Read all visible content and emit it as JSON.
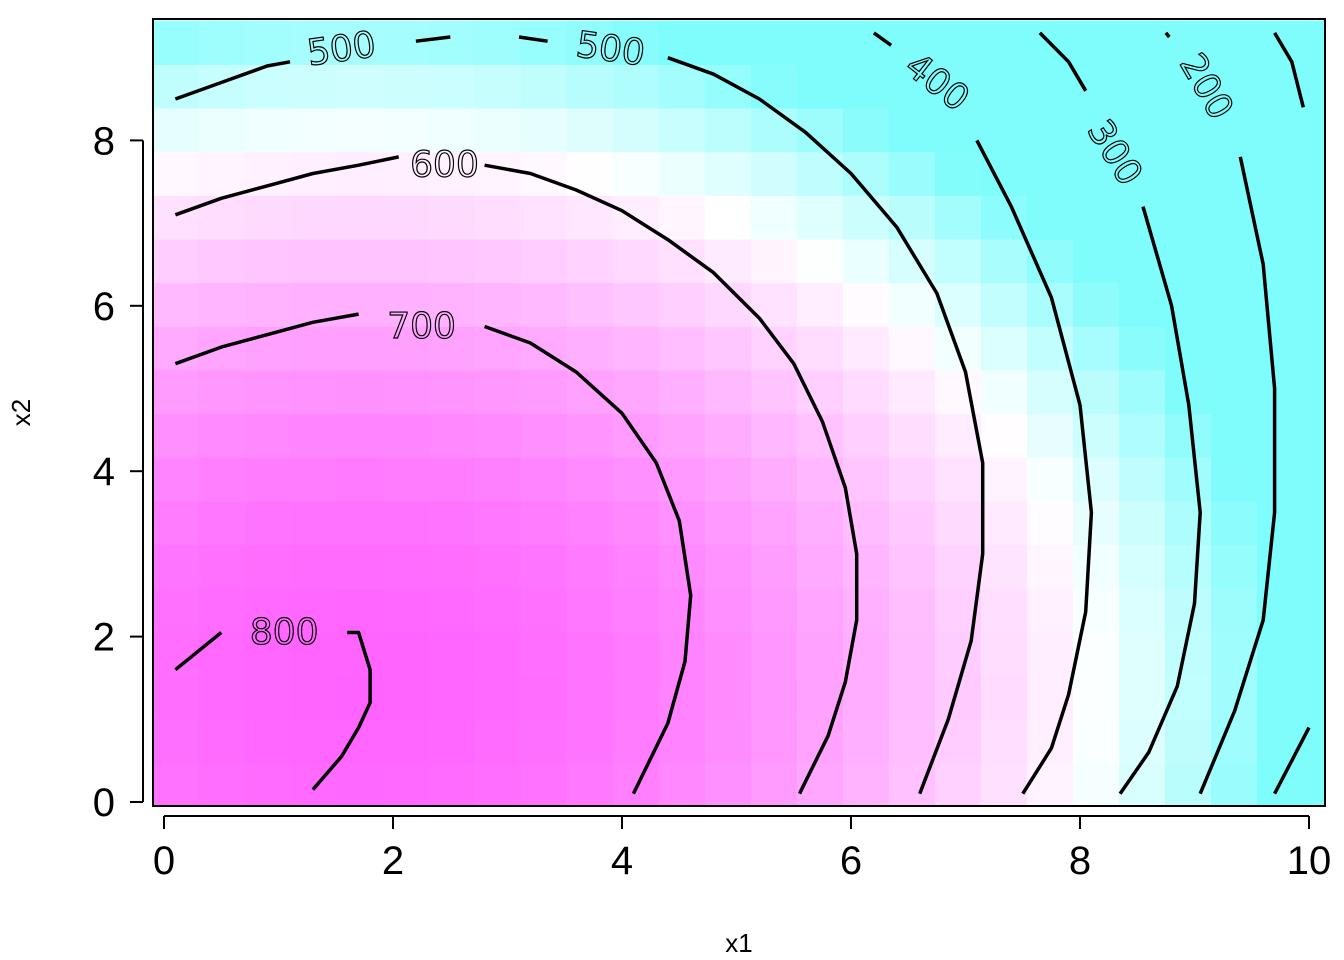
{
  "chart_data": {
    "type": "heatmap",
    "title": "",
    "xlabel": "x1",
    "ylabel": "x2",
    "xlim": [
      0,
      10
    ],
    "ylim": [
      0,
      9.4
    ],
    "x_ticks": [
      0,
      2,
      4,
      6,
      8,
      10
    ],
    "y_ticks": [
      0,
      2,
      4,
      6,
      8
    ],
    "x_tick_labels": [
      "0",
      "2",
      "4",
      "6",
      "8",
      "10"
    ],
    "y_tick_labels": [
      "0",
      "2",
      "4",
      "6",
      "8"
    ],
    "color_scale": {
      "low": "#7ffcfc",
      "mid": "#ffffff",
      "high": "#ff5cff"
    },
    "value_range": [
      150,
      850
    ],
    "contours": [
      {
        "level": 800,
        "label": "800",
        "segments": [
          [
            [
              0.1,
              1.6
            ],
            [
              0.5,
              2.05
            ]
          ],
          [
            [
              1.6,
              2.05
            ],
            [
              1.7,
              2.05
            ],
            [
              1.8,
              1.6
            ],
            [
              1.8,
              1.2
            ],
            [
              1.7,
              0.9
            ],
            [
              1.55,
              0.55
            ],
            [
              1.3,
              0.15
            ]
          ]
        ]
      },
      {
        "level": 700,
        "label": "700",
        "segments": [
          [
            [
              0.1,
              5.3
            ],
            [
              0.5,
              5.5
            ],
            [
              0.9,
              5.65
            ],
            [
              1.3,
              5.8
            ],
            [
              1.7,
              5.9
            ]
          ],
          [
            [
              2.8,
              5.75
            ],
            [
              3.2,
              5.55
            ],
            [
              3.6,
              5.2
            ],
            [
              4.0,
              4.7
            ],
            [
              4.3,
              4.1
            ],
            [
              4.5,
              3.4
            ],
            [
              4.6,
              2.5
            ],
            [
              4.55,
              1.7
            ],
            [
              4.4,
              0.95
            ],
            [
              4.1,
              0.1
            ]
          ]
        ]
      },
      {
        "level": 600,
        "label": "600",
        "segments": [
          [
            [
              0.1,
              7.1
            ],
            [
              0.5,
              7.3
            ],
            [
              0.9,
              7.45
            ],
            [
              1.3,
              7.6
            ],
            [
              1.7,
              7.7
            ],
            [
              2.05,
              7.8
            ]
          ],
          [
            [
              2.8,
              7.7
            ],
            [
              3.2,
              7.6
            ],
            [
              3.6,
              7.4
            ],
            [
              4.0,
              7.15
            ],
            [
              4.4,
              6.8
            ],
            [
              4.8,
              6.4
            ],
            [
              5.2,
              5.85
            ],
            [
              5.5,
              5.3
            ],
            [
              5.75,
              4.6
            ],
            [
              5.95,
              3.8
            ],
            [
              6.05,
              3.0
            ],
            [
              6.05,
              2.2
            ],
            [
              5.95,
              1.45
            ],
            [
              5.8,
              0.8
            ],
            [
              5.55,
              0.1
            ]
          ]
        ]
      },
      {
        "level": 500,
        "label": "500",
        "segments": [
          [
            [
              0.1,
              8.5
            ],
            [
              0.5,
              8.7
            ],
            [
              0.9,
              8.9
            ],
            [
              1.1,
              8.95
            ]
          ],
          [
            [
              2.2,
              9.2
            ],
            [
              2.5,
              9.25
            ]
          ],
          [
            [
              3.1,
              9.25
            ],
            [
              3.35,
              9.2
            ]
          ],
          [
            [
              4.4,
              9.0
            ],
            [
              4.8,
              8.8
            ],
            [
              5.2,
              8.5
            ],
            [
              5.6,
              8.1
            ],
            [
              6.0,
              7.6
            ],
            [
              6.4,
              6.95
            ],
            [
              6.75,
              6.15
            ],
            [
              7.0,
              5.2
            ],
            [
              7.15,
              4.1
            ],
            [
              7.15,
              3.0
            ],
            [
              7.05,
              1.95
            ],
            [
              6.85,
              1.0
            ],
            [
              6.6,
              0.1
            ]
          ]
        ]
      },
      {
        "level": 400,
        "label": "400",
        "segments": [
          [
            [
              6.2,
              9.3
            ],
            [
              6.35,
              9.15
            ]
          ],
          [
            [
              7.1,
              8.0
            ],
            [
              7.4,
              7.2
            ],
            [
              7.75,
              6.1
            ],
            [
              8.0,
              4.8
            ],
            [
              8.1,
              3.5
            ],
            [
              8.05,
              2.3
            ],
            [
              7.9,
              1.3
            ],
            [
              7.75,
              0.65
            ],
            [
              7.5,
              0.1
            ]
          ]
        ]
      },
      {
        "level": 300,
        "label": "300",
        "segments": [
          [
            [
              7.65,
              9.3
            ],
            [
              7.9,
              8.95
            ],
            [
              8.05,
              8.6
            ]
          ],
          [
            [
              8.55,
              7.2
            ],
            [
              8.8,
              6.0
            ],
            [
              8.95,
              4.8
            ],
            [
              9.05,
              3.5
            ],
            [
              9.0,
              2.4
            ],
            [
              8.85,
              1.4
            ],
            [
              8.6,
              0.6
            ],
            [
              8.35,
              0.1
            ]
          ]
        ]
      },
      {
        "level": 200,
        "label": "200",
        "segments": [
          [
            [
              8.75,
              9.3
            ],
            [
              8.78,
              9.25
            ]
          ],
          [
            [
              9.4,
              7.8
            ],
            [
              9.6,
              6.5
            ],
            [
              9.7,
              5.0
            ],
            [
              9.7,
              3.5
            ],
            [
              9.6,
              2.2
            ],
            [
              9.35,
              1.1
            ],
            [
              9.05,
              0.1
            ]
          ],
          [
            [
              9.7,
              9.3
            ],
            [
              9.85,
              8.95
            ],
            [
              9.95,
              8.4
            ]
          ]
        ]
      },
      {
        "level": 150,
        "label": "",
        "segments": [
          [
            [
              10.0,
              0.9
            ],
            [
              9.7,
              0.1
            ]
          ]
        ]
      }
    ],
    "contour_labels": [
      {
        "text": "800",
        "x": 1.05,
        "y": 2.05,
        "angle": 0
      },
      {
        "text": "700",
        "x": 2.25,
        "y": 5.75,
        "angle": 0
      },
      {
        "text": "600",
        "x": 2.45,
        "y": 7.7,
        "angle": 0
      },
      {
        "text": "500",
        "x": 1.55,
        "y": 9.1,
        "angle": -8
      },
      {
        "text": "500",
        "x": 3.9,
        "y": 9.1,
        "angle": 8
      },
      {
        "text": "400",
        "x": 6.75,
        "y": 8.7,
        "angle": 38
      },
      {
        "text": "300",
        "x": 8.3,
        "y": 7.85,
        "angle": 58
      },
      {
        "text": "200",
        "x": 9.1,
        "y": 8.65,
        "angle": 60
      }
    ]
  }
}
